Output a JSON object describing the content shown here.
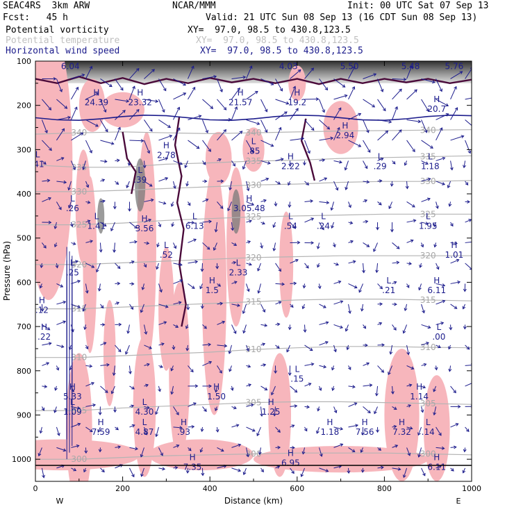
{
  "header": {
    "model": "SEAC4RS  3km ARW",
    "org": "NCAR/MMM",
    "init": "Init: 00 UTC Sat 07 Sep 13",
    "fcst": "Fcst:   45 h",
    "valid": "Valid: 21 UTC Sun 08 Sep 13 (16 CDT Sun 08 Sep 13)",
    "field_pv": "Potential vorticity",
    "field_temp": "Potential temperature",
    "field_wind": "Horizontal wind speed",
    "xy_pv": "XY=  97.0, 98.5 to 430.8,123.5",
    "xy_temp": "XY=  97.0, 98.5 to 430.8,123.5",
    "xy_wind": "XY=  97.0, 98.5 to 430.8,123.5"
  },
  "colors": {
    "pv": "#4a0a3a",
    "theta": "#b4b4b4",
    "wind": "#1c1c8c",
    "shade_pink": "#f7b6bc",
    "shade_gray": "#7a7a7a",
    "cross_section_line": "#1c1c8c"
  },
  "chart_data": {
    "type": "cross-section",
    "xlabel": "Distance (km)",
    "ylabel": "Pressure (hPa)",
    "xlim": [
      0,
      1000
    ],
    "ylim": [
      1050,
      100
    ],
    "y_scale": "linear",
    "x_ticks": [
      "0",
      "200",
      "400",
      "600",
      "800",
      "1000"
    ],
    "y_ticks": [
      "100",
      "200",
      "300",
      "400",
      "500",
      "600",
      "700",
      "800",
      "900",
      "1000"
    ],
    "left_end": "W",
    "right_end": "E",
    "theta_contours": [
      {
        "label": "340",
        "p": [
          265,
          262,
          260,
          262,
          264,
          262,
          260,
          258,
          257,
          256,
          255
        ]
      },
      {
        "label": "335",
        "p": [
          335,
          340,
          340,
          333,
          330,
          326,
          324,
          320,
          318,
          316,
          314
        ]
      },
      {
        "label": "330",
        "p": [
          395,
          395,
          392,
          388,
          384,
          380,
          378,
          374,
          372,
          372,
          370
        ]
      },
      {
        "label": "325",
        "p": [
          470,
          470,
          466,
          460,
          456,
          452,
          450,
          448,
          446,
          446,
          446
        ]
      },
      {
        "label": "320",
        "p": [
          560,
          560,
          556,
          552,
          548,
          544,
          542,
          540,
          540,
          540,
          540
        ]
      },
      {
        "label": "315",
        "p": [
          660,
          660,
          656,
          652,
          648,
          644,
          640,
          638,
          638,
          640,
          642
        ]
      },
      {
        "label": "310",
        "p": [
          770,
          770,
          766,
          762,
          758,
          752,
          748,
          745,
          745,
          747,
          748
        ]
      },
      {
        "label": "305",
        "p": [
          890,
          890,
          884,
          880,
          876,
          872,
          870,
          870,
          872,
          874,
          876
        ]
      },
      {
        "label": "300",
        "p": [
          1000,
          1000,
          996,
          992,
          990,
          988,
          986,
          986,
          986,
          988,
          990
        ]
      }
    ],
    "pv_contours": [
      {
        "label": "1.5",
        "points": [
          [
            0,
            140
          ],
          [
            50,
            150
          ],
          [
            100,
            135
          ],
          [
            150,
            150
          ],
          [
            200,
            138
          ],
          [
            250,
            152
          ],
          [
            300,
            140
          ],
          [
            350,
            150
          ],
          [
            400,
            138
          ],
          [
            450,
            148
          ],
          [
            500,
            140
          ],
          [
            550,
            150
          ],
          [
            600,
            140
          ],
          [
            650,
            152
          ],
          [
            700,
            140
          ],
          [
            750,
            150
          ],
          [
            800,
            140
          ],
          [
            850,
            148
          ],
          [
            900,
            140
          ],
          [
            950,
            150
          ],
          [
            1000,
            142
          ]
        ]
      },
      {
        "label": "1.5",
        "points": [
          [
            330,
            225
          ],
          [
            320,
            290
          ],
          [
            335,
            360
          ],
          [
            325,
            420
          ],
          [
            340,
            480
          ],
          [
            330,
            560
          ],
          [
            345,
            650
          ],
          [
            335,
            700
          ]
        ]
      },
      {
        "label": "1.5",
        "points": [
          [
            200,
            260
          ],
          [
            210,
            320
          ],
          [
            230,
            350
          ],
          [
            220,
            400
          ]
        ]
      },
      {
        "label": "1.5",
        "points": [
          [
            620,
            230
          ],
          [
            610,
            280
          ],
          [
            630,
            330
          ],
          [
            640,
            370
          ]
        ]
      }
    ],
    "extrema": [
      {
        "type": "H",
        "x": 140,
        "p": 190,
        "value": "24.39"
      },
      {
        "type": "H",
        "x": 240,
        "p": 190,
        "value": "23.32"
      },
      {
        "type": "H",
        "x": 470,
        "p": 190,
        "value": "21.57"
      },
      {
        "type": "H",
        "x": 600,
        "p": 190,
        "value": "19.2"
      },
      {
        "type": "H",
        "x": 920,
        "p": 205,
        "value": "20.7"
      },
      {
        "type": "H",
        "x": 710,
        "p": 265,
        "value": "2.94"
      },
      {
        "type": "L",
        "x": 5,
        "p": 330,
        "value": ".41"
      },
      {
        "type": "H",
        "x": 300,
        "p": 310,
        "value": "2.78"
      },
      {
        "type": "L",
        "x": 500,
        "p": 300,
        "value": ".85"
      },
      {
        "type": "H",
        "x": 585,
        "p": 335,
        "value": "2.22"
      },
      {
        "type": "L",
        "x": 790,
        "p": 335,
        "value": ".29"
      },
      {
        "type": "L",
        "x": 905,
        "p": 335,
        "value": "1.18"
      },
      {
        "type": "L",
        "x": 240,
        "p": 365,
        "value": ".39"
      },
      {
        "type": "L",
        "x": 85,
        "p": 430,
        "value": ".26"
      },
      {
        "type": "H",
        "x": 490,
        "p": 430,
        "value": "3.05.48"
      },
      {
        "type": "L",
        "x": 140,
        "p": 470,
        "value": "1.41"
      },
      {
        "type": "H",
        "x": 250,
        "p": 475,
        "value": "3.56"
      },
      {
        "type": "L",
        "x": 365,
        "p": 470,
        "value": "6.13"
      },
      {
        "type": "L",
        "x": 585,
        "p": 470,
        "value": ".54"
      },
      {
        "type": "L",
        "x": 660,
        "p": 470,
        "value": ".24"
      },
      {
        "type": "L",
        "x": 900,
        "p": 470,
        "value": "1.95"
      },
      {
        "type": "L",
        "x": 300,
        "p": 535,
        "value": ".52"
      },
      {
        "type": "H",
        "x": 960,
        "p": 535,
        "value": "1.01"
      },
      {
        "type": "L",
        "x": 85,
        "p": 575,
        "value": ".25"
      },
      {
        "type": "L",
        "x": 465,
        "p": 575,
        "value": "2.33"
      },
      {
        "type": "L",
        "x": 810,
        "p": 615,
        "value": ".21"
      },
      {
        "type": "H",
        "x": 920,
        "p": 615,
        "value": "6.11"
      },
      {
        "type": "H",
        "x": 405,
        "p": 615,
        "value": "1.5"
      },
      {
        "type": "H",
        "x": 15,
        "p": 660,
        "value": ".12"
      },
      {
        "type": "H",
        "x": 20,
        "p": 720,
        "value": ".22"
      },
      {
        "type": "L",
        "x": 925,
        "p": 720,
        "value": ".00"
      },
      {
        "type": "L",
        "x": 600,
        "p": 815,
        "value": ".15"
      },
      {
        "type": "H",
        "x": 85,
        "p": 855,
        "value": "5.33"
      },
      {
        "type": "H",
        "x": 415,
        "p": 855,
        "value": "1.50"
      },
      {
        "type": "H",
        "x": 880,
        "p": 855,
        "value": "1.14"
      },
      {
        "type": "L",
        "x": 85,
        "p": 890,
        "value": "1.09"
      },
      {
        "type": "L",
        "x": 250,
        "p": 890,
        "value": "4.30"
      },
      {
        "type": "H",
        "x": 540,
        "p": 890,
        "value": "1.25"
      },
      {
        "type": "H",
        "x": 150,
        "p": 935,
        "value": "7.59"
      },
      {
        "type": "L",
        "x": 250,
        "p": 935,
        "value": "4.87"
      },
      {
        "type": "H",
        "x": 340,
        "p": 935,
        "value": ".93"
      },
      {
        "type": "H",
        "x": 675,
        "p": 935,
        "value": "1.18"
      },
      {
        "type": "H",
        "x": 755,
        "p": 935,
        "value": "7.56"
      },
      {
        "type": "H",
        "x": 840,
        "p": 935,
        "value": "7.32"
      },
      {
        "type": "L",
        "x": 900,
        "p": 935,
        "value": ".14"
      },
      {
        "type": "H",
        "x": 360,
        "p": 1015,
        "value": "7.35"
      },
      {
        "type": "H",
        "x": 585,
        "p": 1005,
        "value": "6.95"
      },
      {
        "type": "H",
        "x": 920,
        "p": 1015,
        "value": "6.11"
      }
    ],
    "tropopause_labels": [
      {
        "x": 80,
        "p": 112,
        "value": "6.04"
      },
      {
        "x": 580,
        "p": 112,
        "value": "4.03"
      },
      {
        "x": 720,
        "p": 112,
        "value": "5.50"
      },
      {
        "x": 860,
        "p": 112,
        "value": "5.48"
      },
      {
        "x": 960,
        "p": 112,
        "value": "5.76"
      }
    ],
    "wind_vectors": {
      "columns": 30,
      "rows": 20
    }
  }
}
